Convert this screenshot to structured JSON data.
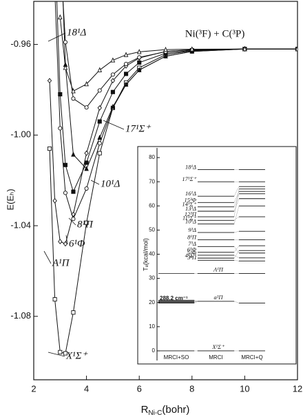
{
  "chart_data": [
    {
      "type": "line",
      "ylabel": "E(Eₕ)",
      "xlabel": [
        "R",
        "Ni-C",
        "(bohr)"
      ],
      "annotation": "Ni(³F) + C(³P)",
      "xlim": [
        2,
        12
      ],
      "xticks": [
        2,
        4,
        6,
        8,
        10,
        12
      ],
      "ylim": [
        -1.108,
        -0.941
      ],
      "yticks": [
        -0.96,
        {
          "value": -1,
          "label": "-1.00"
        },
        -1.04,
        -1.08
      ],
      "x": [
        2.6,
        2.8,
        3.0,
        3.2,
        3.5,
        4.0,
        4.5,
        5.0,
        5.5,
        6.0,
        7.0,
        8.0,
        10.0,
        12.0
      ],
      "series": [
        {
          "name": "X¹Σ⁺",
          "color": "#111111",
          "marker": "square",
          "values": [
            -1.006,
            -1.0725,
            -1.0958,
            -1.0963,
            -1.0783,
            -1.0387,
            -1.008,
            -0.988,
            -0.9768,
            -0.9703,
            -0.9645,
            -0.9628,
            -0.962,
            -0.962
          ]
        },
        {
          "name": "A¹Π",
          "color": "#111111",
          "marker": "diamond",
          "values": [
            -0.976,
            -1.029,
            -1.047,
            -1.048,
            -1.035,
            -1.008,
            -0.988,
            -0.976,
            -0.9695,
            -0.966,
            -0.9631,
            -0.9623,
            -0.962,
            -0.962
          ]
        },
        {
          "name": "6¹Φ",
          "color": "#111111",
          "marker": "circle",
          "values": [
            null,
            -0.936,
            -0.997,
            -1.0255,
            -1.037,
            -1.0236,
            -1.0036,
            -0.988,
            -0.9777,
            -0.9713,
            -0.9652,
            -0.9631,
            -0.962,
            -0.962
          ]
        },
        {
          "name": "8¹Π",
          "color": "#111111",
          "marker": "square-filled",
          "values": [
            null,
            -0.916,
            -0.982,
            -1.0132,
            -1.025,
            -1.0122,
            -0.994,
            -0.981,
            -0.973,
            -0.968,
            -0.9639,
            -0.9626,
            -0.962,
            -0.962
          ]
        },
        {
          "name": "10¹Δ",
          "color": "#111111",
          "marker": "triangle-filled",
          "values": [
            null,
            null,
            -0.908,
            -0.969,
            -1.0086,
            -1.0149,
            -1.0011,
            -0.9875,
            -0.9777,
            -0.9713,
            -0.9652,
            -0.9631,
            -0.962,
            -0.962
          ]
        },
        {
          "name": "17¹Σ⁺",
          "color": "#111111",
          "marker": "circle",
          "values": [
            null,
            null,
            -0.919,
            -0.959,
            -0.9839,
            -0.9878,
            -0.9803,
            -0.9733,
            -0.9686,
            -0.9657,
            -0.9632,
            -0.9624,
            -0.962,
            -0.962
          ]
        },
        {
          "name": "18¹Δ",
          "color": "#111111",
          "marker": "triangle",
          "values": [
            null,
            null,
            -0.948,
            -0.9703,
            -0.9806,
            -0.9775,
            -0.9713,
            -0.967,
            -0.9646,
            -0.9633,
            -0.9623,
            -0.9621,
            -0.962,
            -0.962
          ]
        }
      ]
    },
    {
      "type": "levels",
      "ylabel": "Tₑ(kcal/mol)",
      "ylim": [
        -4,
        84
      ],
      "yticks": [
        0,
        10,
        20,
        30,
        40,
        50,
        60,
        70,
        80
      ],
      "columns": [
        "MRCI+SO",
        "MRCI",
        "MRCI+Q"
      ],
      "annotation": "288.2 cm⁻¹",
      "levels": [
        {
          "name": "X¹Σ⁺",
          "so": [
            0
          ],
          "mrci": 0,
          "mrciq": 0
        },
        {
          "name": "a³Π",
          "so": [
            19.8,
            20.1,
            20.4,
            20.7,
            21.0
          ],
          "mrci": 20.5,
          "mrciq": 19.8
        },
        {
          "name": "A¹Π",
          "so": [
            32
          ],
          "mrci": 32,
          "mrciq": 32
        },
        {
          "name": "3³Π",
          "mrci": 37.5,
          "mrciq": 37.2
        },
        {
          "name": "4¹Σ⁺",
          "mrci": 38.4,
          "mrciq": 41.5
        },
        {
          "name": "5³Φ",
          "mrci": 39.6,
          "mrciq": 38.5
        },
        {
          "name": "6¹Φ",
          "mrci": 40.8,
          "mrciq": 43.5
        },
        {
          "name": "7³Δ",
          "mrci": 43.2,
          "mrciq": 40.5
        },
        {
          "name": "8¹Π",
          "mrci": 46,
          "mrciq": 46
        },
        {
          "name": "9³Δ",
          "mrci": 49,
          "mrciq": 49.5
        },
        {
          "name": "10¹Δ",
          "mrci": 52.5,
          "mrciq": 60
        },
        {
          "name": "11¹Σ⁺",
          "mrci": 54,
          "mrciq": 55.5
        },
        {
          "name": "12³Π",
          "mrci": 55.5,
          "mrciq": 67
        },
        {
          "name": "13³Δ",
          "mrci": 57.8,
          "mrciq": 63
        },
        {
          "name": "14³Σ⁺",
          "mrci": 59.6,
          "mrciq": 65
        },
        {
          "name": "15³Φ",
          "mrci": 61.4,
          "mrciq": 66
        },
        {
          "name": "16¹Δ",
          "mrci": 64,
          "mrciq": 68
        },
        {
          "name": "17¹Σ⁺",
          "mrci": 70,
          "mrciq": 70
        },
        {
          "name": "18¹Δ",
          "mrci": 75,
          "mrciq": 75
        }
      ]
    }
  ]
}
